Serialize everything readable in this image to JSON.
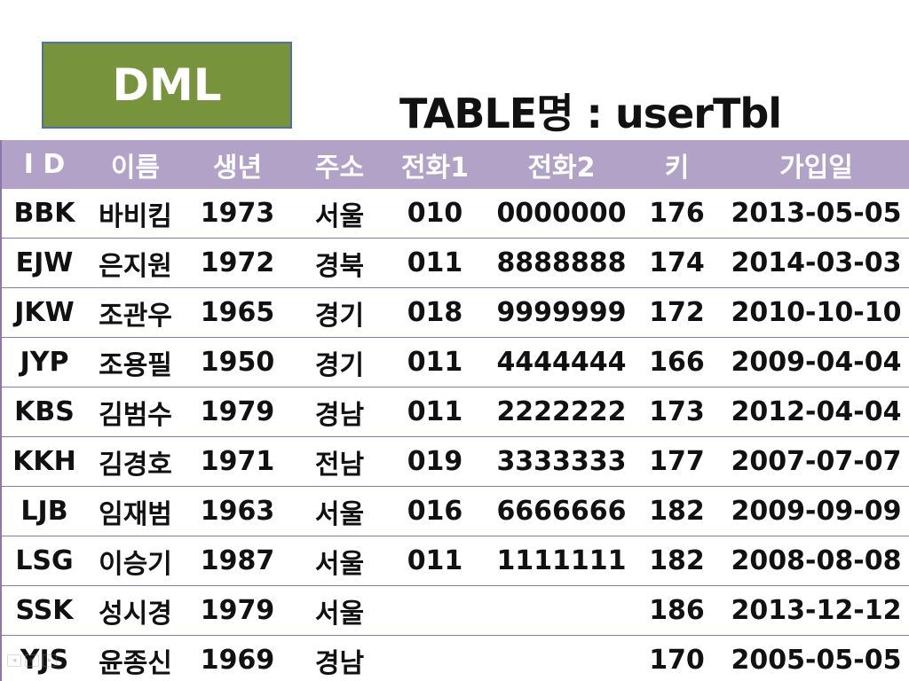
{
  "dml_label": "DML",
  "table_title": "TABLE명 : userTbl",
  "table": {
    "headers": [
      "I D",
      "이름",
      "생년",
      "주소",
      "전화1",
      "전화2",
      "키",
      "가입일"
    ],
    "rows": [
      [
        "BBK",
        "바비킴",
        "1973",
        "서울",
        "010",
        "0000000",
        "176",
        "2013-05-05"
      ],
      [
        "EJW",
        "은지원",
        "1972",
        "경북",
        "011",
        "8888888",
        "174",
        "2014-03-03"
      ],
      [
        "JKW",
        "조관우",
        "1965",
        "경기",
        "018",
        "9999999",
        "172",
        "2010-10-10"
      ],
      [
        "JYP",
        "조용필",
        "1950",
        "경기",
        "011",
        "4444444",
        "166",
        "2009-04-04"
      ],
      [
        "KBS",
        "김범수",
        "1979",
        "경남",
        "011",
        "2222222",
        "173",
        "2012-04-04"
      ],
      [
        "KKH",
        "김경호",
        "1971",
        "전남",
        "019",
        "3333333",
        "177",
        "2007-07-07"
      ],
      [
        "LJB",
        "임재범",
        "1963",
        "서울",
        "016",
        "6666666",
        "182",
        "2009-09-09"
      ],
      [
        "LSG",
        "이승기",
        "1987",
        "서울",
        "011",
        "1111111",
        "182",
        "2008-08-08"
      ],
      [
        "SSK",
        "성시경",
        "1979",
        "서울",
        "",
        "",
        "186",
        "2013-12-12"
      ],
      [
        "YJS",
        "윤종신",
        "1969",
        "경남",
        "",
        "",
        "170",
        "2005-05-05"
      ]
    ]
  },
  "nav_icons": [
    "prev-icon",
    "menu-icon",
    "next-icon"
  ]
}
